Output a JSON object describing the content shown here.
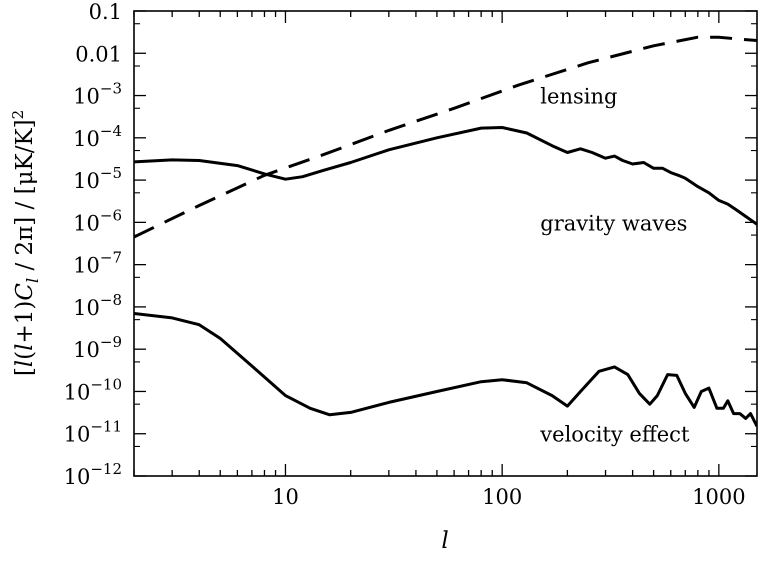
{
  "chart_data": {
    "type": "line",
    "title": "",
    "xlabel": "l",
    "ylabel": "[l(l+1)C_l / 2π] / [μK/K]^2",
    "x_scale": "log",
    "y_scale": "log",
    "xlim": [
      2,
      1500
    ],
    "ylim": [
      1e-12,
      0.1
    ],
    "grid": false,
    "x_ticks": [
      {
        "value": 10,
        "label": "10"
      },
      {
        "value": 100,
        "label": "100"
      },
      {
        "value": 1000,
        "label": "1000"
      }
    ],
    "y_ticks": [
      {
        "value": 0.1,
        "mant": "0.1",
        "exp": ""
      },
      {
        "value": 0.01,
        "mant": "0.01",
        "exp": ""
      },
      {
        "value": 0.001,
        "mant": "10",
        "exp": "−3"
      },
      {
        "value": 0.0001,
        "mant": "10",
        "exp": "−4"
      },
      {
        "value": 1e-05,
        "mant": "10",
        "exp": "−5"
      },
      {
        "value": 1e-06,
        "mant": "10",
        "exp": "−6"
      },
      {
        "value": 1e-07,
        "mant": "10",
        "exp": "−7"
      },
      {
        "value": 1e-08,
        "mant": "10",
        "exp": "−8"
      },
      {
        "value": 1e-09,
        "mant": "10",
        "exp": "−9"
      },
      {
        "value": 1e-10,
        "mant": "10",
        "exp": "−10"
      },
      {
        "value": 1e-11,
        "mant": "10",
        "exp": "−11"
      },
      {
        "value": 1e-12,
        "mant": "10",
        "exp": "−12"
      }
    ],
    "annotations": [
      {
        "id": "lensing",
        "text": "lensing",
        "x": 150,
        "y": 0.001
      },
      {
        "id": "gravity",
        "text": "gravity waves",
        "x": 150,
        "y": 1e-06
      },
      {
        "id": "velocity",
        "text": "velocity effect",
        "x": 150,
        "y": 1e-11
      }
    ],
    "series": [
      {
        "id": "lensing",
        "style": "dashed",
        "x": [
          2,
          4,
          8,
          15,
          30,
          60,
          120,
          250,
          500,
          800,
          1000,
          1200,
          1500
        ],
        "y": [
          4.5e-07,
          2.5e-06,
          1.3e-05,
          4e-05,
          0.00015,
          0.0005,
          0.0018,
          0.006,
          0.015,
          0.024,
          0.024,
          0.022,
          0.02
        ]
      },
      {
        "id": "gravity",
        "style": "solid",
        "x": [
          2,
          3,
          4,
          6,
          8,
          10,
          12,
          15,
          20,
          30,
          50,
          80,
          100,
          130,
          170,
          200,
          230,
          260,
          300,
          330,
          360,
          400,
          450,
          500,
          550,
          600,
          650,
          700,
          800,
          900,
          1000,
          1100,
          1200,
          1300,
          1500
        ],
        "y": [
          2.7e-05,
          3e-05,
          2.9e-05,
          2.2e-05,
          1.4e-05,
          1.05e-05,
          1.2e-05,
          1.7e-05,
          2.6e-05,
          5.2e-05,
          0.0001,
          0.00017,
          0.000175,
          0.00013,
          6.5e-05,
          4.5e-05,
          5.5e-05,
          4.5e-05,
          3.3e-05,
          3.7e-05,
          2.9e-05,
          2.4e-05,
          2.6e-05,
          1.9e-05,
          1.9e-05,
          1.5e-05,
          1.3e-05,
          1.1e-05,
          7e-06,
          5e-06,
          3.3e-06,
          2.7e-06,
          2e-06,
          1.5e-06,
          9e-07
        ]
      },
      {
        "id": "velocity",
        "style": "solid",
        "x": [
          2,
          3,
          4,
          5,
          7,
          10,
          13,
          16,
          20,
          30,
          50,
          80,
          100,
          130,
          170,
          200,
          230,
          280,
          330,
          380,
          430,
          480,
          520,
          580,
          640,
          700,
          770,
          830,
          900,
          980,
          1050,
          1100,
          1170,
          1250,
          1330,
          1400,
          1500
        ],
        "y": [
          7e-09,
          5.5e-09,
          3.8e-09,
          1.8e-09,
          4e-10,
          8e-11,
          4e-11,
          2.8e-11,
          3.2e-11,
          5.5e-11,
          1e-10,
          1.7e-10,
          1.9e-10,
          1.6e-10,
          8e-11,
          4.5e-11,
          1e-10,
          3e-10,
          3.8e-10,
          2.5e-10,
          9e-11,
          5e-11,
          8e-11,
          2.5e-10,
          2.4e-10,
          9e-11,
          4.2e-11,
          1e-10,
          1.2e-10,
          4e-11,
          4e-11,
          6e-11,
          3e-11,
          3e-11,
          2.3e-11,
          3e-11,
          1.5e-11
        ]
      }
    ]
  }
}
